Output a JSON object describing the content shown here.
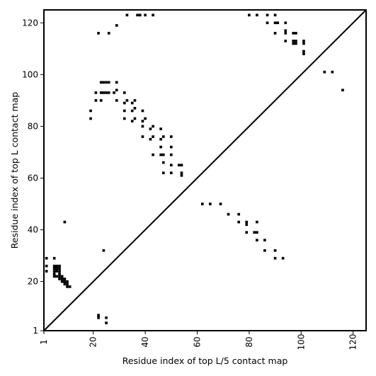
{
  "chart_data": {
    "type": "scatter",
    "title": "",
    "xlabel": "Residue index of top L/5 contact map",
    "ylabel": "Residue index of top L contact map",
    "xlim": [
      1,
      125
    ],
    "ylim": [
      1,
      125
    ],
    "xticks": [
      1,
      20,
      40,
      60,
      80,
      100,
      120
    ],
    "yticks": [
      1,
      20,
      40,
      60,
      80,
      100,
      120
    ],
    "grid": false,
    "diagonal": [
      [
        1,
        1
      ],
      [
        125,
        125
      ]
    ],
    "marker_color": "#000000",
    "series": [
      {
        "region": "upper-left",
        "points": [
          [
            22,
            116
          ],
          [
            26,
            116
          ],
          [
            29,
            119
          ],
          [
            33,
            123
          ],
          [
            37,
            123
          ],
          [
            38,
            123
          ],
          [
            40,
            123
          ],
          [
            43,
            123
          ],
          [
            21,
            93
          ],
          [
            21,
            90
          ],
          [
            19,
            86
          ],
          [
            19,
            83
          ],
          [
            23,
            97
          ],
          [
            24,
            97
          ],
          [
            25,
            97
          ],
          [
            26,
            97
          ],
          [
            29,
            97
          ],
          [
            23,
            93
          ],
          [
            24,
            93
          ],
          [
            25,
            93
          ],
          [
            26,
            93
          ],
          [
            28,
            93
          ],
          [
            29,
            94
          ],
          [
            32,
            93
          ],
          [
            23,
            90
          ],
          [
            29,
            90
          ],
          [
            32,
            89
          ],
          [
            33,
            90
          ],
          [
            35,
            89
          ],
          [
            36,
            90
          ],
          [
            32,
            86
          ],
          [
            35,
            86
          ],
          [
            36,
            87
          ],
          [
            39,
            86
          ],
          [
            32,
            83
          ],
          [
            35,
            82
          ],
          [
            36,
            83
          ],
          [
            39,
            82
          ],
          [
            40,
            83
          ],
          [
            39,
            80
          ],
          [
            42,
            79
          ],
          [
            43,
            80
          ],
          [
            46,
            79
          ],
          [
            39,
            76
          ],
          [
            42,
            75
          ],
          [
            43,
            76
          ],
          [
            46,
            75
          ],
          [
            47,
            76
          ],
          [
            50,
            76
          ],
          [
            46,
            72
          ],
          [
            50,
            72
          ],
          [
            43,
            69
          ],
          [
            46,
            69
          ],
          [
            47,
            69
          ],
          [
            50,
            69
          ],
          [
            47,
            66
          ],
          [
            50,
            65
          ],
          [
            53,
            65
          ],
          [
            54,
            65
          ],
          [
            47,
            62
          ],
          [
            50,
            62
          ],
          [
            54,
            62
          ],
          [
            54,
            61
          ]
        ]
      },
      {
        "region": "upper-right",
        "points": [
          [
            80,
            123
          ],
          [
            83,
            123
          ],
          [
            87,
            123
          ],
          [
            90,
            123
          ],
          [
            87,
            120
          ],
          [
            90,
            120
          ],
          [
            91,
            120
          ],
          [
            94,
            120
          ],
          [
            94,
            117
          ],
          [
            94,
            116
          ],
          [
            97,
            116
          ],
          [
            98,
            116
          ],
          [
            90,
            116
          ],
          [
            94,
            113
          ],
          [
            97,
            113
          ],
          [
            98,
            113
          ],
          [
            97,
            112
          ],
          [
            98,
            112
          ],
          [
            101,
            113
          ],
          [
            101,
            112
          ],
          [
            101,
            109
          ],
          [
            101,
            108
          ],
          [
            109,
            101
          ],
          [
            112,
            101
          ],
          [
            116,
            94
          ]
        ]
      },
      {
        "region": "lower-right",
        "points": [
          [
            62,
            50
          ],
          [
            65,
            50
          ],
          [
            69,
            50
          ],
          [
            72,
            46
          ],
          [
            76,
            46
          ],
          [
            76,
            43
          ],
          [
            79,
            43
          ],
          [
            79,
            42
          ],
          [
            83,
            43
          ],
          [
            79,
            39
          ],
          [
            82,
            39
          ],
          [
            83,
            39
          ],
          [
            83,
            36
          ],
          [
            86,
            36
          ],
          [
            86,
            32
          ],
          [
            90,
            32
          ],
          [
            90,
            29
          ],
          [
            93,
            29
          ]
        ]
      },
      {
        "region": "lower-left",
        "points": [
          [
            2,
            29
          ],
          [
            5,
            29
          ],
          [
            2,
            26
          ],
          [
            2,
            24
          ],
          [
            5,
            26
          ],
          [
            6,
            26
          ],
          [
            7,
            26
          ],
          [
            5,
            25
          ],
          [
            6,
            25
          ],
          [
            7,
            25
          ],
          [
            5,
            24
          ],
          [
            6,
            24
          ],
          [
            7,
            24
          ],
          [
            5,
            23
          ],
          [
            7,
            23
          ],
          [
            5,
            22
          ],
          [
            6,
            22
          ],
          [
            7,
            22
          ],
          [
            8,
            22
          ],
          [
            7,
            21
          ],
          [
            8,
            21
          ],
          [
            9,
            21
          ],
          [
            8,
            20
          ],
          [
            9,
            20
          ],
          [
            10,
            20
          ],
          [
            9,
            19
          ],
          [
            10,
            19
          ],
          [
            10,
            18
          ],
          [
            11,
            18
          ],
          [
            9,
            43
          ],
          [
            24,
            32
          ],
          [
            22,
            7
          ],
          [
            22,
            6
          ],
          [
            25,
            6
          ],
          [
            25,
            4
          ]
        ]
      }
    ]
  }
}
